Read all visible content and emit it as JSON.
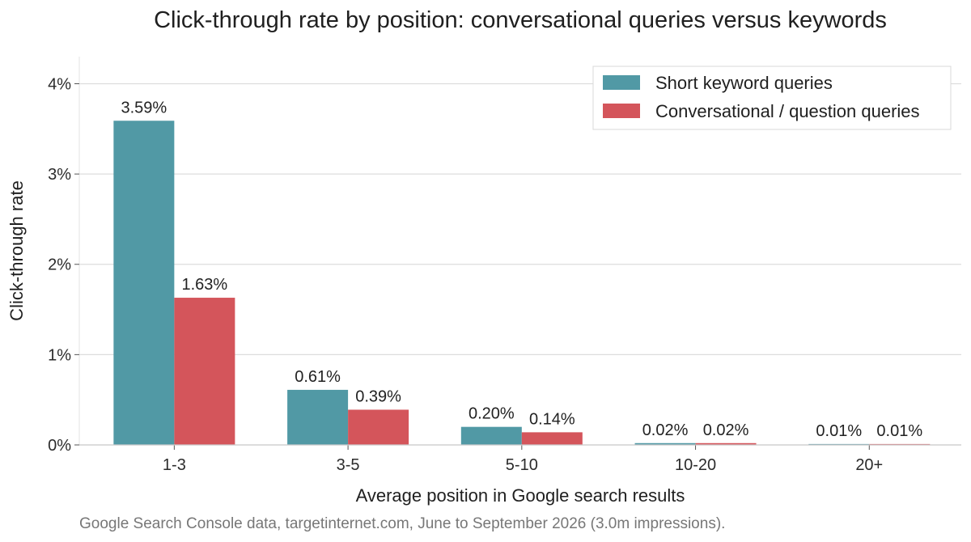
{
  "chart_data": {
    "type": "bar",
    "title": "Click-through rate by position: conversational queries versus keywords",
    "xlabel": "Average position in Google search results",
    "ylabel": "Click-through rate",
    "categories": [
      "1-3",
      "3-5",
      "5-10",
      "10-20",
      "20+"
    ],
    "series": [
      {
        "name": "Short keyword queries",
        "color": "#5199a5",
        "values": [
          3.59,
          0.61,
          0.2,
          0.02,
          0.01
        ],
        "labels": [
          "3.59%",
          "0.61%",
          "0.20%",
          "0.02%",
          "0.01%"
        ]
      },
      {
        "name": "Conversational / question queries",
        "color": "#d4555b",
        "values": [
          1.63,
          0.39,
          0.14,
          0.02,
          0.01
        ],
        "labels": [
          "1.63%",
          "0.39%",
          "0.14%",
          "0.02%",
          "0.01%"
        ]
      }
    ],
    "ylim": [
      0,
      4.3
    ],
    "yticks": [
      0,
      1,
      2,
      3,
      4
    ],
    "ytick_labels": [
      "0%",
      "1%",
      "2%",
      "3%",
      "4%"
    ],
    "grid": "horizontal",
    "legend_position": "top-right",
    "source_note": "Google Search Console data, targetinternet.com, June to September 2026 (3.0m impressions)."
  }
}
